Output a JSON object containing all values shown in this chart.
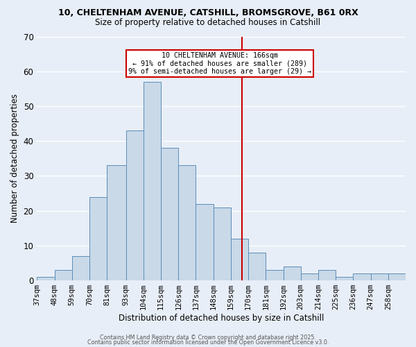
{
  "title1": "10, CHELTENHAM AVENUE, CATSHILL, BROMSGROVE, B61 0RX",
  "title2": "Size of property relative to detached houses in Catshill",
  "xlabel": "Distribution of detached houses by size in Catshill",
  "ylabel": "Number of detached properties",
  "bar_labels": [
    "37sqm",
    "48sqm",
    "59sqm",
    "70sqm",
    "81sqm",
    "93sqm",
    "104sqm",
    "115sqm",
    "126sqm",
    "137sqm",
    "148sqm",
    "159sqm",
    "170sqm",
    "181sqm",
    "192sqm",
    "203sqm",
    "214sqm",
    "225sqm",
    "236sqm",
    "247sqm",
    "258sqm"
  ],
  "counts": [
    1,
    3,
    7,
    24,
    33,
    43,
    57,
    38,
    33,
    22,
    21,
    12,
    8,
    3,
    4,
    2,
    3,
    1,
    2,
    2,
    2
  ],
  "bar_color": "#c9d9e8",
  "bar_edge_color": "#5b8db8",
  "background_color": "#e8eef7",
  "grid_color": "#ffffff",
  "vline_x": 166,
  "vline_color": "#cc0000",
  "annotation_text": "10 CHELTENHAM AVENUE: 166sqm\n← 91% of detached houses are smaller (289)\n9% of semi-detached houses are larger (29) →",
  "annotation_box_color": "#cc0000",
  "ylim": [
    0,
    70
  ],
  "yticks": [
    0,
    10,
    20,
    30,
    40,
    50,
    60,
    70
  ],
  "footer1": "Contains HM Land Registry data © Crown copyright and database right 2025.",
  "footer2": "Contains public sector information licensed under the Open Government Licence v3.0."
}
